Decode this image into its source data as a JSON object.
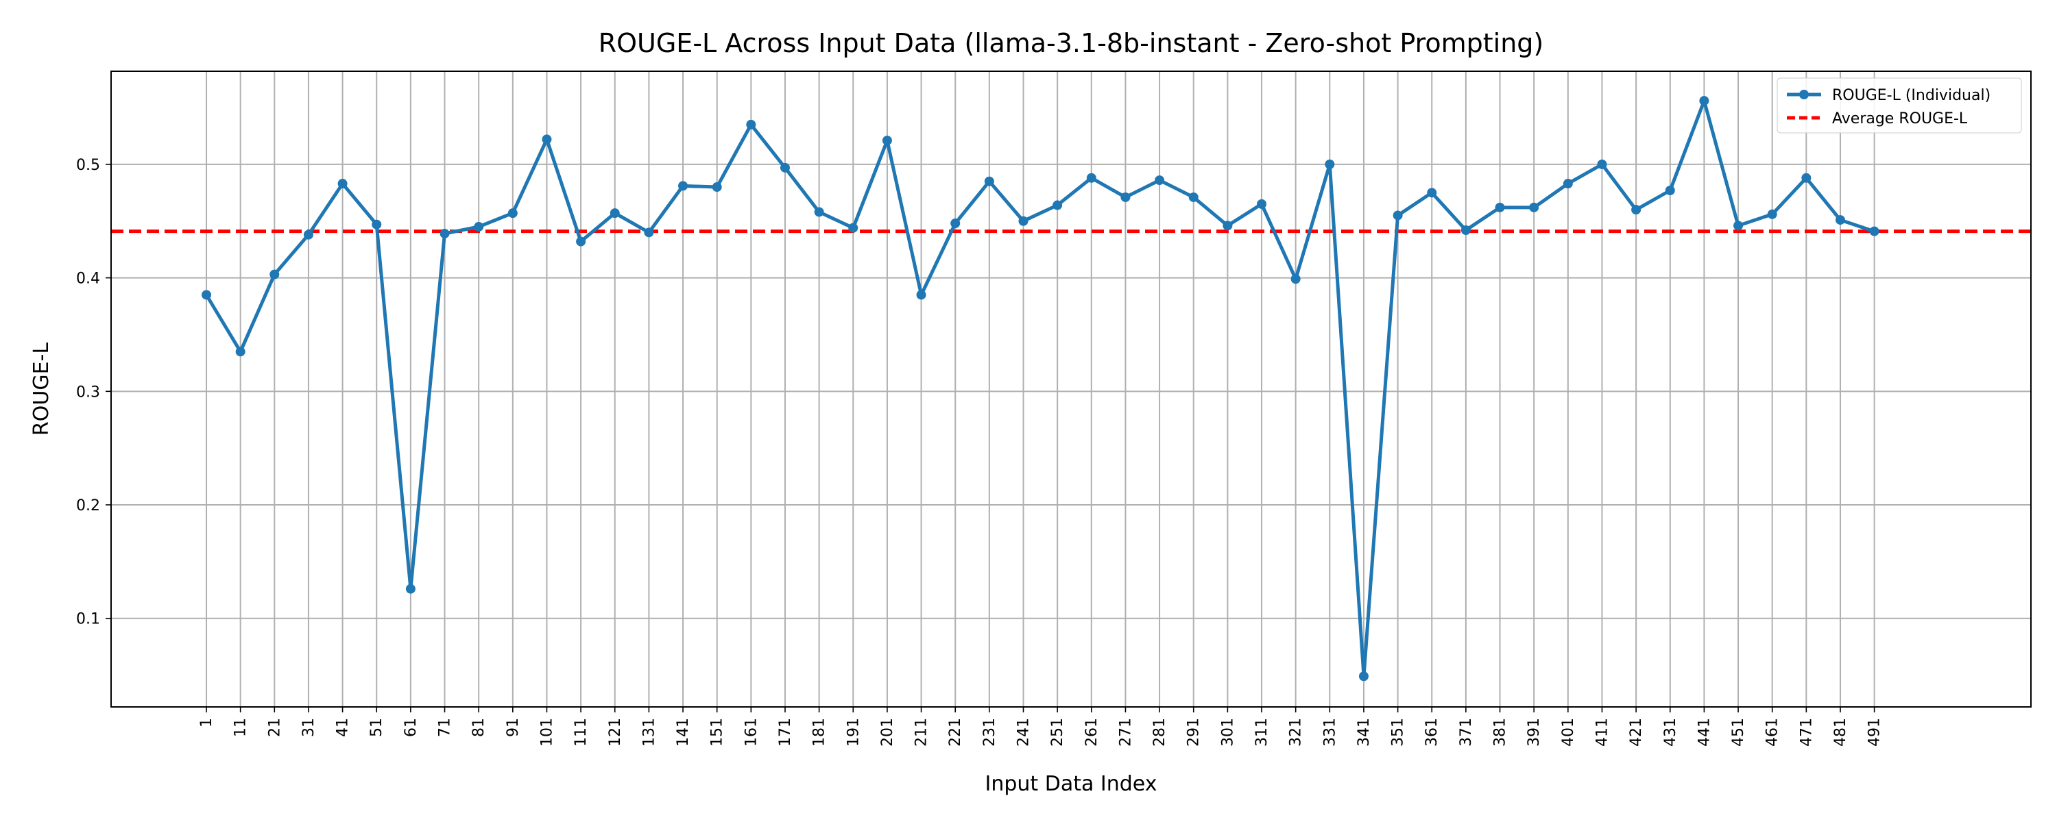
{
  "chart_data": {
    "type": "line",
    "title": "ROUGE-L Across Input Data (llama-3.1-8b-instant - Zero-shot Prompting)",
    "xlabel": "Input Data Index",
    "ylabel": "ROUGE-L",
    "x": [
      1,
      11,
      21,
      31,
      41,
      51,
      61,
      71,
      81,
      91,
      101,
      111,
      121,
      131,
      141,
      151,
      161,
      171,
      181,
      191,
      201,
      211,
      221,
      231,
      241,
      251,
      261,
      271,
      281,
      291,
      301,
      311,
      321,
      331,
      341,
      351,
      361,
      371,
      381,
      391,
      401,
      411,
      421,
      431,
      441,
      451,
      461,
      471,
      481,
      491
    ],
    "series": [
      {
        "name": "ROUGE-L (Individual)",
        "color": "#1f77b4",
        "values": [
          0.385,
          0.335,
          0.403,
          0.438,
          0.483,
          0.447,
          0.126,
          0.439,
          0.445,
          0.457,
          0.522,
          0.432,
          0.457,
          0.44,
          0.481,
          0.48,
          0.535,
          0.497,
          0.458,
          0.444,
          0.521,
          0.385,
          0.448,
          0.485,
          0.45,
          0.464,
          0.488,
          0.471,
          0.486,
          0.471,
          0.446,
          0.465,
          0.399,
          0.5,
          0.049,
          0.455,
          0.475,
          0.442,
          0.462,
          0.462,
          0.483,
          0.5,
          0.46,
          0.477,
          0.556,
          0.446,
          0.456,
          0.488,
          0.451,
          0.441
        ]
      }
    ],
    "average": {
      "name": "Average ROUGE-L",
      "value": 0.441,
      "color": "#ff0000"
    },
    "ylim": [
      0.022,
      0.582
    ],
    "xlim": [
      -27,
      537
    ],
    "yticks": [
      0.1,
      0.2,
      0.3,
      0.4,
      0.5
    ],
    "grid": true,
    "legend_position": "top-right"
  }
}
